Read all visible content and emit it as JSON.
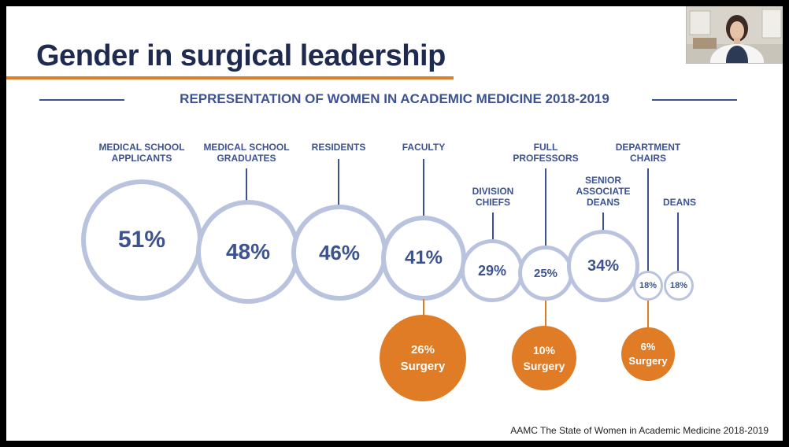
{
  "slide": {
    "title": "Gender in surgical leadership",
    "subtitle": "REPRESENTATION OF WOMEN IN ACADEMIC MEDICINE 2018-2019",
    "source": "AAMC The State of Women in Academic Medicine 2018-2019"
  },
  "categories": [
    {
      "label_line1": "MEDICAL SCHOOL",
      "label_line2": "APPLICANTS",
      "label_line3": "",
      "percent": "51%",
      "value": 51
    },
    {
      "label_line1": "MEDICAL SCHOOL",
      "label_line2": "GRADUATES",
      "label_line3": "",
      "percent": "48%",
      "value": 48
    },
    {
      "label_line1": "RESIDENTS",
      "label_line2": "",
      "label_line3": "",
      "percent": "46%",
      "value": 46
    },
    {
      "label_line1": "FACULTY",
      "label_line2": "",
      "label_line3": "",
      "percent": "41%",
      "value": 41
    },
    {
      "label_line1": "DIVISION",
      "label_line2": "CHIEFS",
      "label_line3": "",
      "percent": "29%",
      "value": 29
    },
    {
      "label_line1": "FULL",
      "label_line2": "PROFESSORS",
      "label_line3": "",
      "percent": "25%",
      "value": 25
    },
    {
      "label_line1": "SENIOR",
      "label_line2": "ASSOCIATE",
      "label_line3": "DEANS",
      "percent": "34%",
      "value": 34
    },
    {
      "label_line1": "DEPARTMENT",
      "label_line2": "CHAIRS",
      "label_line3": "",
      "percent": "18%",
      "value": 18
    },
    {
      "label_line1": "DEANS",
      "label_line2": "",
      "label_line3": "",
      "percent": "18%",
      "value": 18
    }
  ],
  "surgery": [
    {
      "category": "FACULTY",
      "percent": "26%",
      "label": "Surgery",
      "value": 26
    },
    {
      "category": "FULL PROFESSORS",
      "percent": "10%",
      "label": "Surgery",
      "value": 10
    },
    {
      "category": "DEPARTMENT CHAIRS",
      "percent": "6%",
      "label": "Surgery",
      "value": 6
    }
  ],
  "colors": {
    "navy": "#3d5290",
    "title": "#1e2a4f",
    "orange": "#e07b26",
    "ring": "#b9c3de"
  }
}
